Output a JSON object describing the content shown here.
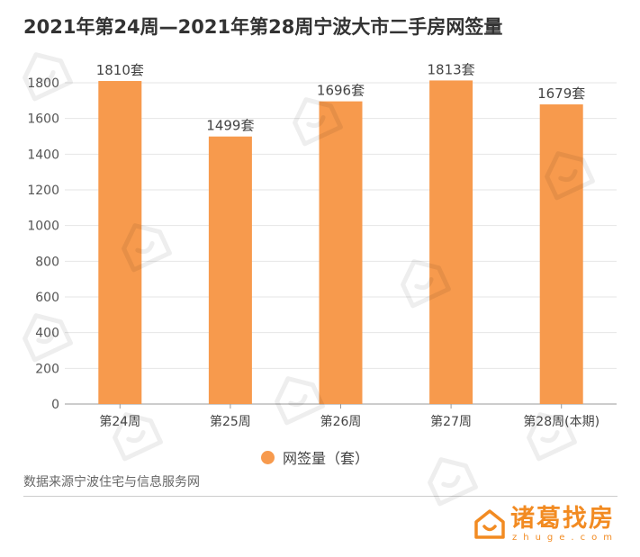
{
  "title": "2021年第24周—2021年第28周宁波大市二手房网签量",
  "chart_data": {
    "type": "bar",
    "categories": [
      "第24周",
      "第25周",
      "第26周",
      "第27周",
      "第28周(本期)"
    ],
    "series": [
      {
        "name": "网签量（套）",
        "values": [
          1810,
          1499,
          1696,
          1813,
          1679
        ]
      }
    ],
    "value_labels": [
      "1810套",
      "1499套",
      "1696套",
      "1813套",
      "1679套"
    ],
    "yticks": [
      0,
      200,
      400,
      600,
      800,
      1000,
      1200,
      1400,
      1600,
      1800
    ],
    "ylim": [
      0,
      1800
    ],
    "grid": true,
    "legend_position": "bottom-center",
    "bar_color": "#f79a4d"
  },
  "legend": {
    "label": "网签量（套）",
    "color": "#f79a4d"
  },
  "source": "数据来源宁波住宅与信息服务网",
  "brand": {
    "name": "诸葛找房",
    "sub": "zhuge.com",
    "color": "#f28b22"
  },
  "watermark_icon": "house-logo-icon"
}
